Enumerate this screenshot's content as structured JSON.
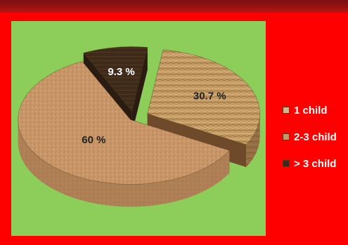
{
  "chart_data": {
    "type": "pie",
    "style": "3d-exploded",
    "slices": [
      {
        "label": "1 child",
        "value": 30.7,
        "value_label": "30.7 %",
        "color": "#c49a63",
        "side_color": "#6e4a2a"
      },
      {
        "label": "2-3 child",
        "value": 60,
        "value_label": "60 %",
        "color": "#c99668",
        "side_color": "#9a6e46"
      },
      {
        "label": "> 3 child",
        "value": 9.3,
        "value_label": "9.3 %",
        "color": "#3e2a1a",
        "side_color": "#2a1c10"
      }
    ],
    "legend": {
      "position": "right",
      "items": [
        "1 child",
        "2-3 child",
        "> 3 child"
      ]
    },
    "colors": {
      "background": "#ff0000",
      "plot_area": "#8dce5b",
      "legend_text": "#ffffff"
    }
  }
}
